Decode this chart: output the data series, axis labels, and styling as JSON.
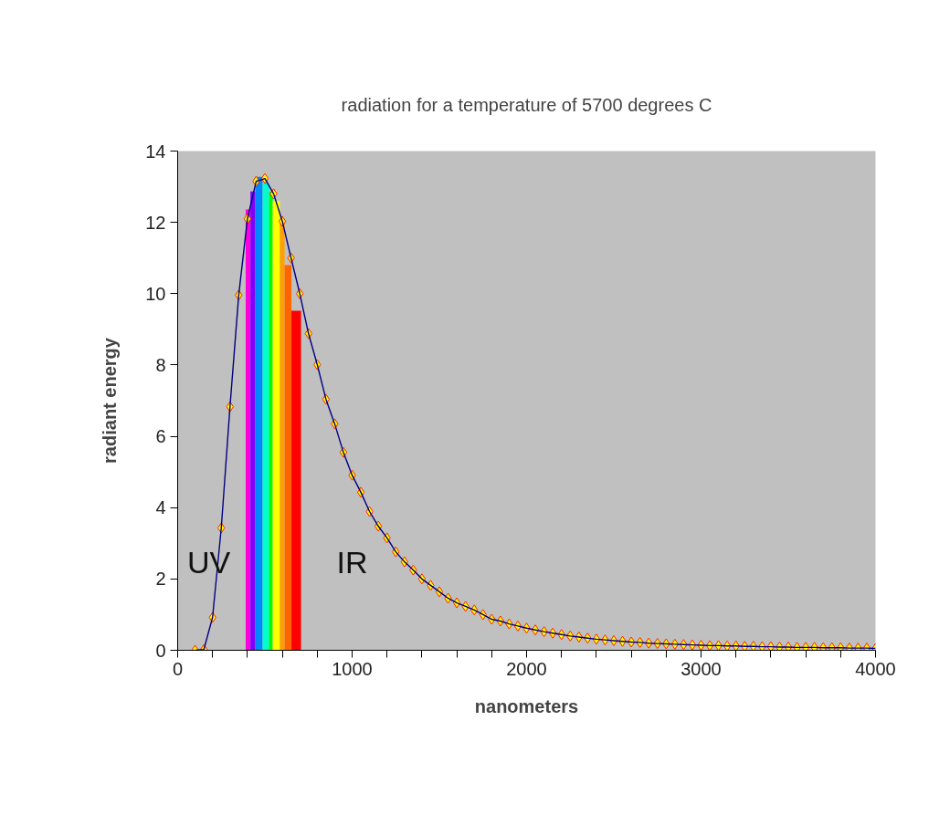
{
  "chart_data": {
    "type": "line",
    "title": "radiation for a temperature of 5700 degrees C",
    "xlabel": "nanometers",
    "ylabel": "radiant energy",
    "xlim": [
      0,
      4000
    ],
    "ylim": [
      0,
      14
    ],
    "xticks": [
      0,
      {
        "value": 200,
        "label": null
      },
      {
        "value": 400,
        "label": null
      },
      {
        "value": 600,
        "label": null
      },
      {
        "value": 800,
        "label": null
      },
      1000,
      {
        "value": 1200,
        "label": null
      },
      {
        "value": 1400,
        "label": null
      },
      {
        "value": 1600,
        "label": null
      },
      {
        "value": 1800,
        "label": null
      },
      2000,
      {
        "value": 2200,
        "label": null
      },
      {
        "value": 2400,
        "label": null
      },
      {
        "value": 2600,
        "label": null
      },
      {
        "value": 2800,
        "label": null
      },
      3000,
      {
        "value": 3200,
        "label": null
      },
      {
        "value": 3400,
        "label": null
      },
      {
        "value": 3600,
        "label": null
      },
      {
        "value": 3800,
        "label": null
      },
      4000
    ],
    "yticks": [
      0,
      2,
      4,
      6,
      8,
      10,
      12,
      14
    ],
    "grid": false,
    "marker": "diamond",
    "line_style": "solid",
    "annotations": [
      "UV",
      "IR"
    ],
    "series": [
      {
        "type": "histogram",
        "bins": [
          390,
          417,
          445,
          487,
          524,
          545,
          586,
          613,
          652,
          707
        ],
        "values": [
          12.36,
          12.87,
          13.28,
          13.1,
          12.87,
          12.6,
          12.08,
          10.8,
          9.52
        ],
        "colors": [
          "#ff00dd",
          "#8000ff",
          "#0088ff",
          "#00ffcc",
          "#00ff00",
          "#ffff00",
          "#ffa000",
          "#ff6600",
          "#ff0000"
        ]
      },
      {
        "color": "#000080",
        "x": [
          100,
          150,
          200,
          250,
          300,
          350,
          400,
          450,
          500,
          550,
          600,
          650,
          700,
          750,
          800,
          850,
          900,
          950,
          1000,
          1050,
          1100,
          1150,
          1200,
          1250,
          1300,
          1350,
          1400,
          1450,
          1500,
          1550,
          1600,
          1650,
          1700,
          1750,
          1800,
          1850,
          1900,
          1950,
          2000,
          2050,
          2100,
          2150,
          2200,
          2250,
          2300,
          2350,
          2400,
          2450,
          2500,
          2550,
          2600,
          2650,
          2700,
          2750,
          2800,
          2850,
          2900,
          2950,
          3000,
          3050,
          3100,
          3150,
          3200,
          3250,
          3300,
          3350,
          3400,
          3450,
          3500,
          3550,
          3600,
          3650,
          3700,
          3750,
          3800,
          3850,
          3900,
          3950,
          4000
        ],
        "values": [
          0,
          0.02,
          0.92,
          3.43,
          6.83,
          9.96,
          12.1,
          13.15,
          13.23,
          12.8,
          12.03,
          11.0,
          10.0,
          8.88,
          8.01,
          7.04,
          6.35,
          5.55,
          4.91,
          4.43,
          3.89,
          3.48,
          3.15,
          2.76,
          2.48,
          2.25,
          2.0,
          1.82,
          1.64,
          1.46,
          1.33,
          1.23,
          1.13,
          1.0,
          0.87,
          0.82,
          0.74,
          0.68,
          0.62,
          0.57,
          0.52,
          0.48,
          0.44,
          0.4,
          0.37,
          0.34,
          0.31,
          0.29,
          0.27,
          0.25,
          0.23,
          0.22,
          0.2,
          0.19,
          0.18,
          0.17,
          0.16,
          0.15,
          0.14,
          0.13,
          0.13,
          0.12,
          0.12,
          0.11,
          0.11,
          0.1,
          0.1,
          0.09,
          0.09,
          0.08,
          0.08,
          0.08,
          0.07,
          0.07,
          0.07,
          0.06,
          0.06,
          0.06,
          0.05
        ]
      }
    ]
  }
}
